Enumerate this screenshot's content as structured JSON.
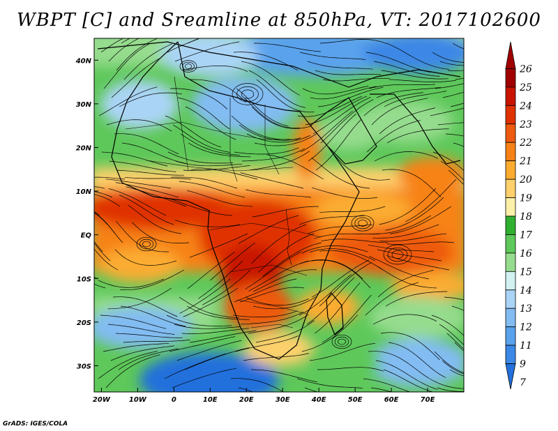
{
  "title": "WBPT [C] and Sreamline at 850hPa, VT: 2017102600",
  "credit": "GrADS: IGES/COLA",
  "map": {
    "lon_range": [
      -22,
      80
    ],
    "lat_range": [
      -36,
      45
    ],
    "lon_ticks": [
      {
        "value": -20,
        "label": "20W"
      },
      {
        "value": -10,
        "label": "10W"
      },
      {
        "value": 0,
        "label": "0"
      },
      {
        "value": 10,
        "label": "10E"
      },
      {
        "value": 20,
        "label": "20E"
      },
      {
        "value": 30,
        "label": "30E"
      },
      {
        "value": 40,
        "label": "40E"
      },
      {
        "value": 50,
        "label": "50E"
      },
      {
        "value": 60,
        "label": "60E"
      },
      {
        "value": 70,
        "label": "70E"
      }
    ],
    "lat_ticks": [
      {
        "value": 40,
        "label": "40N"
      },
      {
        "value": 30,
        "label": "30N"
      },
      {
        "value": 20,
        "label": "20N"
      },
      {
        "value": 10,
        "label": "10N"
      },
      {
        "value": 0,
        "label": "EQ"
      },
      {
        "value": -10,
        "label": "10S"
      },
      {
        "value": -20,
        "label": "20S"
      },
      {
        "value": -30,
        "label": "30S"
      }
    ]
  },
  "colorbar": {
    "labels": [
      "26",
      "25",
      "24",
      "23",
      "22",
      "21",
      "20",
      "19",
      "18",
      "17",
      "16",
      "15",
      "14",
      "13",
      "12",
      "11",
      "9",
      "7"
    ],
    "colors": [
      "#a00000",
      "#c81400",
      "#e03200",
      "#ee5a10",
      "#f78218",
      "#fbac30",
      "#fdd06c",
      "#fdf0a8",
      "#30b030",
      "#5ec85a",
      "#96dc8e",
      "#d2f2f2",
      "#aad4f6",
      "#82bcf2",
      "#5aa2ec",
      "#3c88e6",
      "#2470dc"
    ]
  }
}
